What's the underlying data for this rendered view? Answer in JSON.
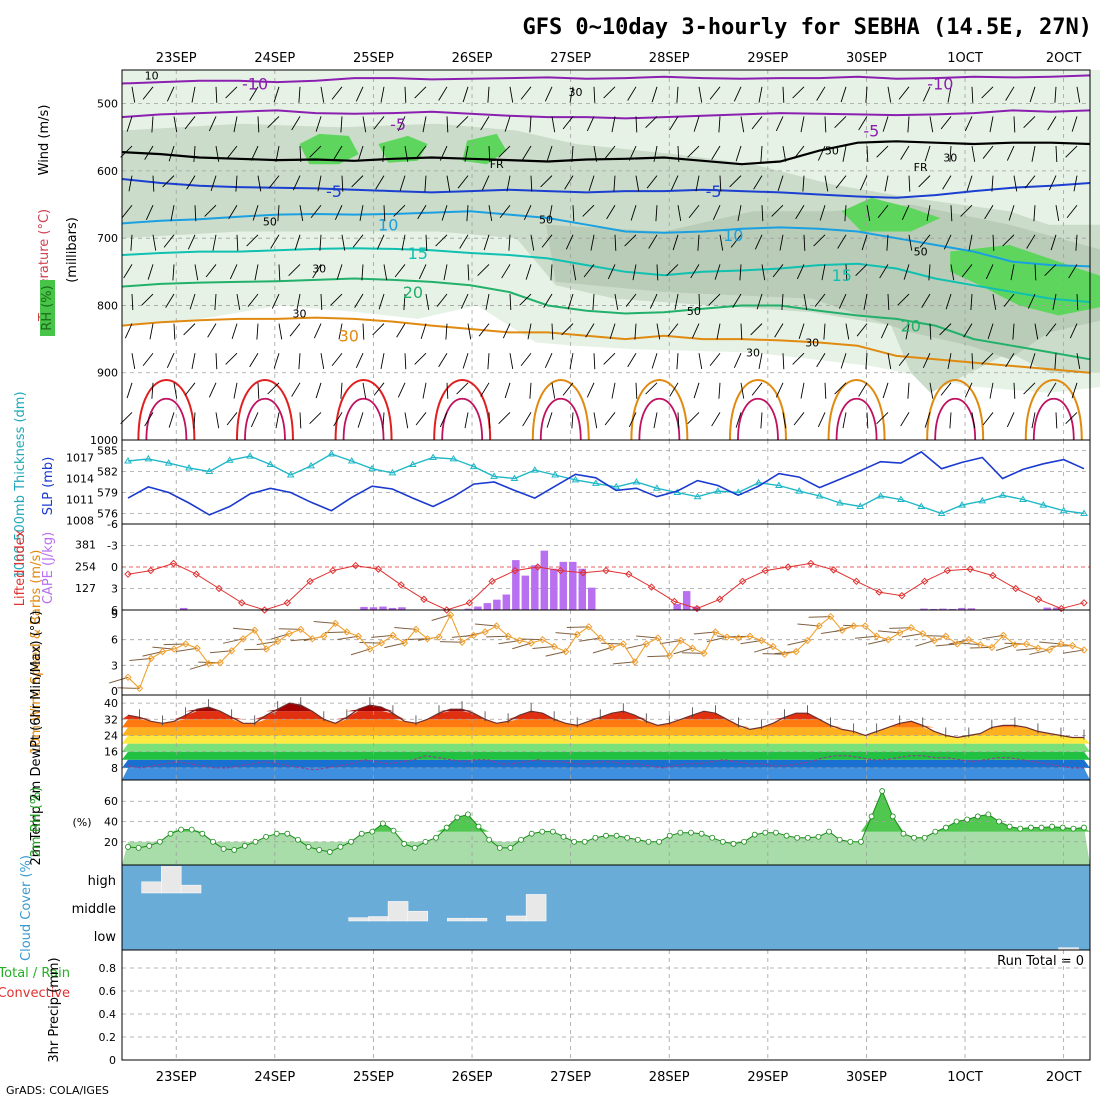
{
  "title": "GFS 0~10day 3-hourly for SEBHA (14.5E, 27N)",
  "footer": "GrADS: COLA/IGES",
  "colors": {
    "purple": "#8b1fb0",
    "black": "#000000",
    "blue": "#1b3fd0",
    "lightblue": "#1aa0e0",
    "teal": "#10c0b0",
    "green": "#22b06a",
    "orange": "#e08a10",
    "red": "#e02020",
    "cyan": "#20b8c8",
    "navy": "#1a3ad0",
    "lired": "#e03030",
    "cape": "#b870f0",
    "wind": "#f0a030",
    "barb": "#806040",
    "rh": "#2a9a2a",
    "cloud": "#6aacd8"
  },
  "chart_data": {
    "type": "meteogram",
    "x_labels": [
      "23SEP",
      "24SEP",
      "25SEP",
      "26SEP",
      "27SEP",
      "28SEP",
      "29SEP",
      "30SEP",
      "1OCT",
      "2OCT"
    ],
    "panels": {
      "upper_air": {
        "ylabel_wind": "Wind (m/s)",
        "ylabel_temp": "Temperature (°C)",
        "ylabel_rh": "RH (%)",
        "ylabel_p": "(millibars)",
        "y_ticks": [
          "500",
          "600",
          "700",
          "800",
          "900",
          "1000"
        ],
        "ylim": [
          450,
          1000
        ],
        "temp_labels": [
          "-10",
          "-10",
          "-5",
          "-5",
          "-5",
          "-5",
          "10",
          "10",
          "15",
          "15",
          "20",
          "20",
          "30"
        ],
        "rh_labels": [
          "10",
          "30",
          "50",
          "50",
          "30",
          "50",
          "30",
          "30",
          "50",
          "30",
          "50",
          "30"
        ],
        "freezing_labels": [
          "FR",
          "FR"
        ],
        "isotherms": [
          {
            "value": -10,
            "color": "purple",
            "p": [
              470,
              468,
              466,
              466,
              468,
              466,
              462,
              462,
              464,
              463,
              462,
              461,
              463,
              462,
              460,
              462,
              463,
              462,
              462,
              460,
              463,
              462,
              460,
              461,
              460,
              458
            ]
          },
          {
            "value": -5,
            "color": "purple",
            "p": [
              520,
              516,
              514,
              512,
              510,
              514,
              515,
              514,
              512,
              515,
              518,
              520,
              520,
              522,
              520,
              518,
              516,
              514,
              515,
              516,
              517,
              516,
              514,
              510,
              512,
              510
            ]
          },
          {
            "value": 0,
            "color": "black",
            "p": [
              572,
              575,
              580,
              582,
              584,
              583,
              585,
              582,
              580,
              582,
              584,
              586,
              583,
              582,
              580,
              585,
              590,
              586,
              570,
              558,
              556,
              558,
              560,
              558,
              558,
              560
            ]
          },
          {
            "value": 5,
            "color": "blue",
            "p": [
              612,
              618,
              622,
              624,
              625,
              626,
              628,
              630,
              632,
              630,
              628,
              630,
              632,
              630,
              630,
              628,
              630,
              632,
              635,
              638,
              640,
              636,
              630,
              625,
              622,
              618
            ]
          },
          {
            "value": 10,
            "color": "lightblue",
            "p": [
              678,
              674,
              672,
              668,
              665,
              664,
              665,
              664,
              662,
              660,
              665,
              670,
              680,
              690,
              692,
              690,
              686,
              684,
              686,
              690,
              700,
              710,
              720,
              735,
              740,
              742
            ]
          },
          {
            "value": 15,
            "color": "teal",
            "p": [
              725,
              722,
              720,
              720,
              718,
              716,
              715,
              716,
              718,
              722,
              725,
              730,
              740,
              750,
              755,
              750,
              748,
              745,
              740,
              738,
              745,
              760,
              770,
              780,
              790,
              795
            ]
          },
          {
            "value": 20,
            "color": "green",
            "p": [
              772,
              768,
              766,
              765,
              764,
              762,
              760,
              762,
              765,
              770,
              780,
              800,
              808,
              812,
              810,
              805,
              800,
              800,
              808,
              815,
              820,
              830,
              850,
              860,
              870,
              880
            ]
          },
          {
            "value": 30,
            "color": "orange",
            "p": [
              830,
              825,
              822,
              820,
              820,
              818,
              820,
              824,
              830,
              835,
              840,
              840,
              845,
              850,
              845,
              850,
              850,
              852,
              855,
              860,
              875,
              880,
              885,
              890,
              895,
              900
            ]
          }
        ]
      },
      "thickness_slp": {
        "ylabel": "1000-500mb Thickness (dm)",
        "ylabel2": "SLP (mb)",
        "left_ticks": [
          "585",
          "582",
          "579",
          "576"
        ],
        "right_ticks": [
          "1017",
          "1014",
          "1011",
          "1008"
        ],
        "thickness": [
          583.5,
          583.8,
          583.2,
          582.5,
          582.0,
          583.6,
          584.2,
          583.0,
          581.5,
          582.8,
          584.5,
          583.5,
          582.4,
          581.8,
          583.0,
          584.0,
          583.8,
          582.7,
          581.3,
          581.0,
          582.2,
          581.5,
          580.8,
          580.3,
          579.8,
          580.5,
          579.6,
          579.0,
          578.4,
          579.2,
          579.0,
          580.4,
          580.0,
          579.2,
          578.5,
          577.5,
          577.0,
          578.5,
          578.0,
          577.0,
          576.0,
          577.2,
          577.8,
          578.6,
          578.0,
          577.2,
          576.4,
          576.0
        ],
        "slp": [
          1011.2,
          1012.8,
          1012.0,
          1010.5,
          1008.8,
          1010.0,
          1011.8,
          1012.6,
          1012.0,
          1010.6,
          1009.4,
          1011.3,
          1012.9,
          1012.5,
          1011.2,
          1010.0,
          1011.4,
          1013.2,
          1013.5,
          1012.3,
          1011.2,
          1012.9,
          1014.6,
          1014.1,
          1012.3,
          1012.6,
          1011.4,
          1012.2,
          1013.7,
          1013.0,
          1011.6,
          1012.9,
          1014.7,
          1014.2,
          1012.7,
          1013.9,
          1015.1,
          1016.4,
          1016.2,
          1017.8,
          1015.4,
          1016.3,
          1017.0,
          1014.0,
          1015.3,
          1016.1,
          1016.7,
          1015.4
        ]
      },
      "cape_li": {
        "ylabel": "Lifted Index",
        "ylabel2": "CAPE (J/kg)",
        "left_ticks": [
          "-6",
          "-3",
          "0",
          "3",
          "6"
        ],
        "right_ticks": [
          "381",
          "254",
          "127"
        ],
        "lifted_index": [
          1.0,
          0.5,
          -0.5,
          1.0,
          3.0,
          5.0,
          6.0,
          5.0,
          2.0,
          0.5,
          -0.2,
          0.3,
          2.5,
          4.5,
          6.0,
          5.0,
          2.0,
          0.5,
          0.0,
          0.5,
          0.8,
          0.5,
          1.0,
          2.8,
          4.8,
          5.8,
          4.5,
          2.0,
          0.5,
          0.0,
          -0.5,
          0.4,
          2.0,
          3.5,
          4.0,
          2.0,
          0.5,
          0.3,
          1.2,
          3.0,
          4.5,
          5.8,
          5.0
        ],
        "cape": [
          0,
          0,
          0,
          0,
          0,
          0,
          12,
          0,
          0,
          0,
          0,
          0,
          0,
          0,
          0,
          0,
          0,
          0,
          0,
          0,
          0,
          0,
          0,
          0,
          0,
          18,
          16,
          20,
          12,
          16,
          0,
          0,
          0,
          0,
          0,
          0,
          8,
          20,
          40,
          60,
          90,
          290,
          200,
          260,
          345,
          240,
          280,
          280,
          240,
          130,
          0,
          0,
          0,
          0,
          0,
          0,
          0,
          0,
          35,
          110,
          20,
          0,
          0,
          0,
          0,
          0,
          0,
          0,
          0,
          0,
          0,
          0,
          0,
          0,
          0,
          0,
          0,
          0,
          0,
          0,
          0,
          0,
          0,
          0,
          8,
          6,
          8,
          6,
          12,
          10,
          0,
          0,
          0,
          0,
          0,
          0,
          0,
          14,
          14,
          0,
          0,
          0
        ]
      },
      "wind10m": {
        "ylabel": "10m Wind Speed & Barbs (m/s)",
        "y_ticks": [
          "9",
          "6",
          "3",
          "0"
        ],
        "speed": [
          1.6,
          0.3,
          3.8,
          4.6,
          4.9,
          5.5,
          5.0,
          3.2,
          3.3,
          4.7,
          6.1,
          7.1,
          4.9,
          5.8,
          6.7,
          7.2,
          6.1,
          6.4,
          7.9,
          6.9,
          6.4,
          4.9,
          5.6,
          6.5,
          5.6,
          7.2,
          6.1,
          6.3,
          8.9,
          5.7,
          6.5,
          6.9,
          7.6,
          6.4,
          5.9,
          5.6,
          6.0,
          5.2,
          4.6,
          6.6,
          7.5,
          6.2,
          5.1,
          5.5,
          3.4,
          5.5,
          6.2,
          4.1,
          5.9,
          5.0,
          4.4,
          6.9,
          6.3,
          6.2,
          6.4,
          5.9,
          5.2,
          4.3,
          4.6,
          5.9,
          7.6,
          8.7,
          7.1,
          7.6,
          7.6,
          6.4,
          6.0,
          6.8,
          7.4,
          6.7,
          5.9,
          6.4,
          5.5,
          6.0,
          5.4,
          5.1,
          6.5,
          5.4,
          5.5,
          5.0,
          4.8,
          5.5,
          5.3,
          4.8
        ]
      },
      "temp2m": {
        "ylabel": "2m Temp 2m DewPt (6hr Min/Max) (°C)",
        "y_ticks": [
          "40",
          "32",
          "24",
          "16",
          "8"
        ],
        "temp": [
          34,
          33,
          31,
          30,
          31,
          34,
          37,
          38,
          36,
          33,
          30,
          30,
          34,
          37,
          40,
          39,
          36,
          32,
          30,
          33,
          37,
          39,
          38,
          35,
          31,
          30,
          32,
          35,
          37,
          37,
          35,
          32,
          30,
          31,
          34,
          36,
          35,
          32,
          30,
          29,
          31,
          33,
          35,
          36,
          34,
          31,
          29,
          30,
          32,
          34,
          36,
          35,
          32,
          29,
          27,
          28,
          30,
          33,
          35,
          35,
          32,
          29,
          27,
          26,
          24,
          26,
          28,
          30,
          31,
          29,
          26,
          24,
          23,
          24,
          25,
          28,
          29,
          29,
          28,
          26,
          25,
          24,
          23,
          23
        ],
        "dewpt": [
          9,
          8,
          9,
          10,
          11,
          10,
          9,
          8,
          8,
          9,
          10,
          11,
          10,
          9,
          8,
          7,
          8,
          9,
          10,
          12,
          11,
          10,
          11,
          12,
          14,
          13,
          12,
          11,
          12,
          12,
          10,
          10,
          11,
          12,
          11,
          11,
          10,
          10,
          11,
          11,
          10,
          10,
          9,
          8,
          9,
          10,
          10,
          11,
          12,
          11,
          10,
          10,
          9,
          9,
          10,
          11,
          13,
          14,
          14,
          13,
          12,
          12,
          13,
          14,
          14,
          13,
          13,
          12,
          11,
          12,
          13,
          13,
          12,
          11,
          10,
          9,
          8,
          8
        ]
      },
      "rh2m": {
        "ylabel": "2m RH (%)",
        "y_ticks": [
          "60",
          "40",
          "20"
        ],
        "rh": [
          15,
          14,
          16,
          20,
          28,
          32,
          32,
          28,
          20,
          13,
          12,
          16,
          20,
          25,
          28,
          28,
          22,
          15,
          12,
          10,
          15,
          20,
          28,
          30,
          38,
          31,
          18,
          14,
          20,
          24,
          34,
          44,
          47,
          35,
          22,
          14,
          14,
          22,
          28,
          30,
          30,
          25,
          20,
          20,
          24,
          26,
          26,
          24,
          22,
          20,
          20,
          26,
          29,
          29,
          28,
          24,
          20,
          18,
          20,
          27,
          29,
          29,
          26,
          24,
          24,
          25,
          30,
          22,
          20,
          20,
          45,
          70,
          45,
          28,
          24,
          24,
          30,
          34,
          40,
          42,
          45,
          47,
          40,
          35,
          33,
          34,
          34,
          35,
          34,
          33,
          34
        ]
      },
      "cloud": {
        "ylabel": "Cloud Cover (%)",
        "levels": [
          "high",
          "middle",
          "low"
        ],
        "high": [
          {
            "day": 0.3,
            "value": 40
          },
          {
            "day": 0.5,
            "value": 95
          },
          {
            "day": 0.7,
            "value": 28
          }
        ],
        "middle": [
          {
            "day": 2.4,
            "value": 12
          },
          {
            "day": 2.6,
            "value": 16
          },
          {
            "day": 2.8,
            "value": 70
          },
          {
            "day": 3.0,
            "value": 35
          },
          {
            "day": 3.4,
            "value": 10
          },
          {
            "day": 3.6,
            "value": 10
          },
          {
            "day": 4.0,
            "value": 18
          },
          {
            "day": 4.2,
            "value": 95
          }
        ],
        "low": [
          {
            "day": 9.6,
            "value": 8
          }
        ]
      },
      "precip": {
        "ylabel": "3hr Precip (mm)",
        "ylabel2": "Total / Rain",
        "ylabel3": "Convective",
        "y_ticks": [
          "0.8",
          "0.6",
          "0.4",
          "0.2",
          "0"
        ],
        "run_total": "Run Total = 0",
        "ylim": [
          0,
          1
        ]
      }
    }
  }
}
